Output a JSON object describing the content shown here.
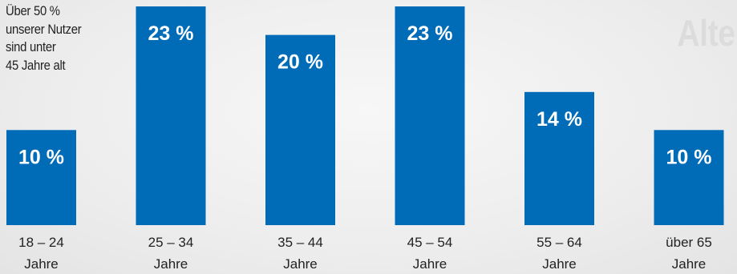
{
  "title": "Alter",
  "annotation": {
    "lines": [
      "Über 50 %",
      "unserer Nutzer",
      "sind unter",
      "45 Jahre alt"
    ]
  },
  "colors": {
    "bar": "#006cb8",
    "bar_label": "#ffffff",
    "axis_text": "#222222",
    "background": "#eeeeee",
    "title": "#dcdcdc"
  },
  "chart_data": {
    "type": "bar",
    "title": "Alter",
    "categories": [
      [
        "18 – 24",
        "Jahre"
      ],
      [
        "25 – 34",
        "Jahre"
      ],
      [
        "35 – 44",
        "Jahre"
      ],
      [
        "45 – 54",
        "Jahre"
      ],
      [
        "55 – 64",
        "Jahre"
      ],
      [
        "über 65",
        "Jahre"
      ]
    ],
    "values": [
      10,
      23,
      20,
      23,
      14,
      10
    ],
    "value_labels": [
      "10 %",
      "23 %",
      "20 %",
      "23 %",
      "14 %",
      "10 %"
    ],
    "unit": "%",
    "ylim": [
      0,
      23
    ],
    "grid": false,
    "legend": "none"
  }
}
